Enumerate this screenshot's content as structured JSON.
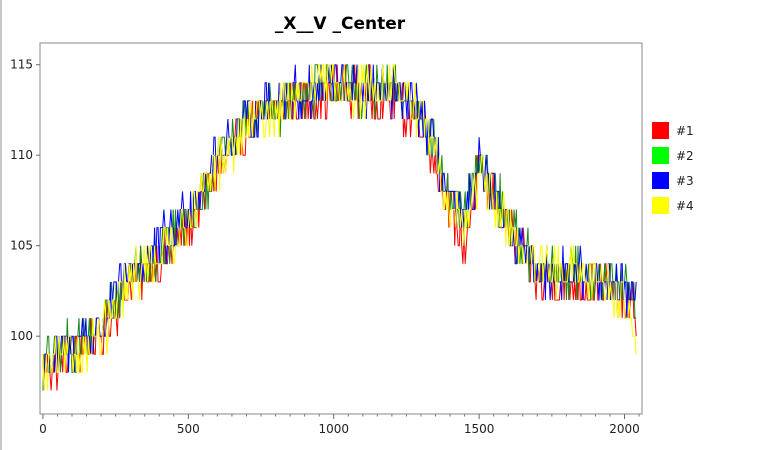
{
  "chart_data": {
    "type": "line",
    "title": "_X__V _Center",
    "xlabel": "",
    "ylabel": "",
    "xlim": [
      -10,
      2060
    ],
    "ylim": [
      95.7,
      116.2
    ],
    "xticks": [
      0,
      500,
      1000,
      1500,
      2000
    ],
    "yticks": [
      100,
      105,
      110,
      115
    ],
    "grid": false,
    "legend_position": "right",
    "series": [
      {
        "name": "#1",
        "color": "#ff0000",
        "x": [
          0,
          100,
          200,
          300,
          400,
          500,
          600,
          700,
          800,
          900,
          1000,
          1100,
          1200,
          1300,
          1400,
          1450,
          1500,
          1600,
          1700,
          1800,
          1900,
          2000,
          2040
        ],
        "y": [
          98,
          99,
          100,
          103,
          104,
          106,
          109,
          111.5,
          112.5,
          113,
          113.5,
          113.5,
          113,
          112,
          107,
          105,
          109,
          106,
          103,
          103,
          103,
          102,
          101
        ]
      },
      {
        "name": "#2",
        "color": "#00ff00",
        "x": [
          0,
          100,
          200,
          300,
          400,
          500,
          600,
          700,
          800,
          900,
          1000,
          1100,
          1200,
          1300,
          1400,
          1450,
          1500,
          1600,
          1700,
          1800,
          1900,
          2000,
          2040
        ],
        "y": [
          98.5,
          99.5,
          100.5,
          103.5,
          104.5,
          106.5,
          109.5,
          112,
          112.5,
          113.5,
          114,
          113.5,
          113.5,
          112.5,
          107.5,
          106.5,
          109.5,
          106.5,
          103.5,
          103.5,
          103.5,
          102.5,
          101.5
        ]
      },
      {
        "name": "#3",
        "color": "#0000ff",
        "x": [
          0,
          100,
          200,
          300,
          400,
          500,
          600,
          700,
          800,
          900,
          1000,
          1100,
          1200,
          1300,
          1400,
          1450,
          1500,
          1600,
          1700,
          1800,
          1900,
          2000,
          2040
        ],
        "y": [
          98.5,
          99.5,
          100.5,
          103.5,
          105,
          107,
          110,
          112,
          113,
          113.5,
          114,
          113.5,
          113.5,
          112.5,
          107.5,
          106,
          109.5,
          106,
          103.5,
          103.5,
          103.5,
          102.5,
          102
        ]
      },
      {
        "name": "#4",
        "color": "#ffff00",
        "x": [
          0,
          100,
          200,
          300,
          400,
          500,
          600,
          700,
          800,
          900,
          1000,
          1100,
          1200,
          1300,
          1400,
          1450,
          1500,
          1600,
          1700,
          1800,
          1900,
          2000,
          2040
        ],
        "y": [
          98,
          99,
          100,
          103,
          104.5,
          106.5,
          109.5,
          111.5,
          112.5,
          113.5,
          114,
          113.5,
          114,
          112.5,
          107,
          106,
          109,
          106,
          103.5,
          103.5,
          103.5,
          102,
          100
        ]
      }
    ]
  }
}
